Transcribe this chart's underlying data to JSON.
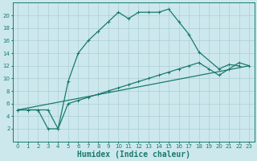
{
  "xlabel": "Humidex (Indice chaleur)",
  "bg_color": "#cce8ec",
  "line_color": "#1a7a6e",
  "xlim": [
    -0.5,
    23.5
  ],
  "ylim": [
    0,
    22
  ],
  "xticks": [
    0,
    1,
    2,
    3,
    4,
    5,
    6,
    7,
    8,
    9,
    10,
    11,
    12,
    13,
    14,
    15,
    16,
    17,
    18,
    19,
    20,
    21,
    22,
    23
  ],
  "yticks": [
    2,
    4,
    6,
    8,
    10,
    12,
    14,
    16,
    18,
    20
  ],
  "curve1_x": [
    0,
    1,
    2,
    3,
    4,
    5,
    6,
    7,
    8,
    9,
    10,
    11,
    12,
    13,
    14,
    15,
    16,
    17,
    18,
    20,
    21,
    22
  ],
  "curve1_y": [
    5,
    5,
    5,
    5,
    2,
    9.5,
    14,
    16,
    17.5,
    19,
    20.5,
    19.5,
    20.5,
    20.5,
    20.5,
    21,
    19,
    17,
    14.2,
    11.5,
    12.2,
    12
  ],
  "curve2_x": [
    0,
    1,
    2,
    3,
    4,
    5,
    6,
    7,
    8,
    9,
    10,
    11,
    12,
    13,
    14,
    15,
    16,
    17,
    18,
    19,
    20,
    21,
    22,
    23
  ],
  "curve2_y": [
    5,
    5,
    5,
    2,
    2,
    6,
    6.5,
    7,
    7.5,
    8,
    8.5,
    9,
    9.5,
    10,
    10.5,
    11,
    11.5,
    12,
    12.5,
    11.5,
    10.5,
    11.5,
    12.5,
    12
  ],
  "curve3_x": [
    0,
    23
  ],
  "curve3_y": [
    5,
    12
  ],
  "grid_color": "#aacfd4",
  "tick_fontsize": 5.0,
  "xlabel_fontsize": 7.0
}
